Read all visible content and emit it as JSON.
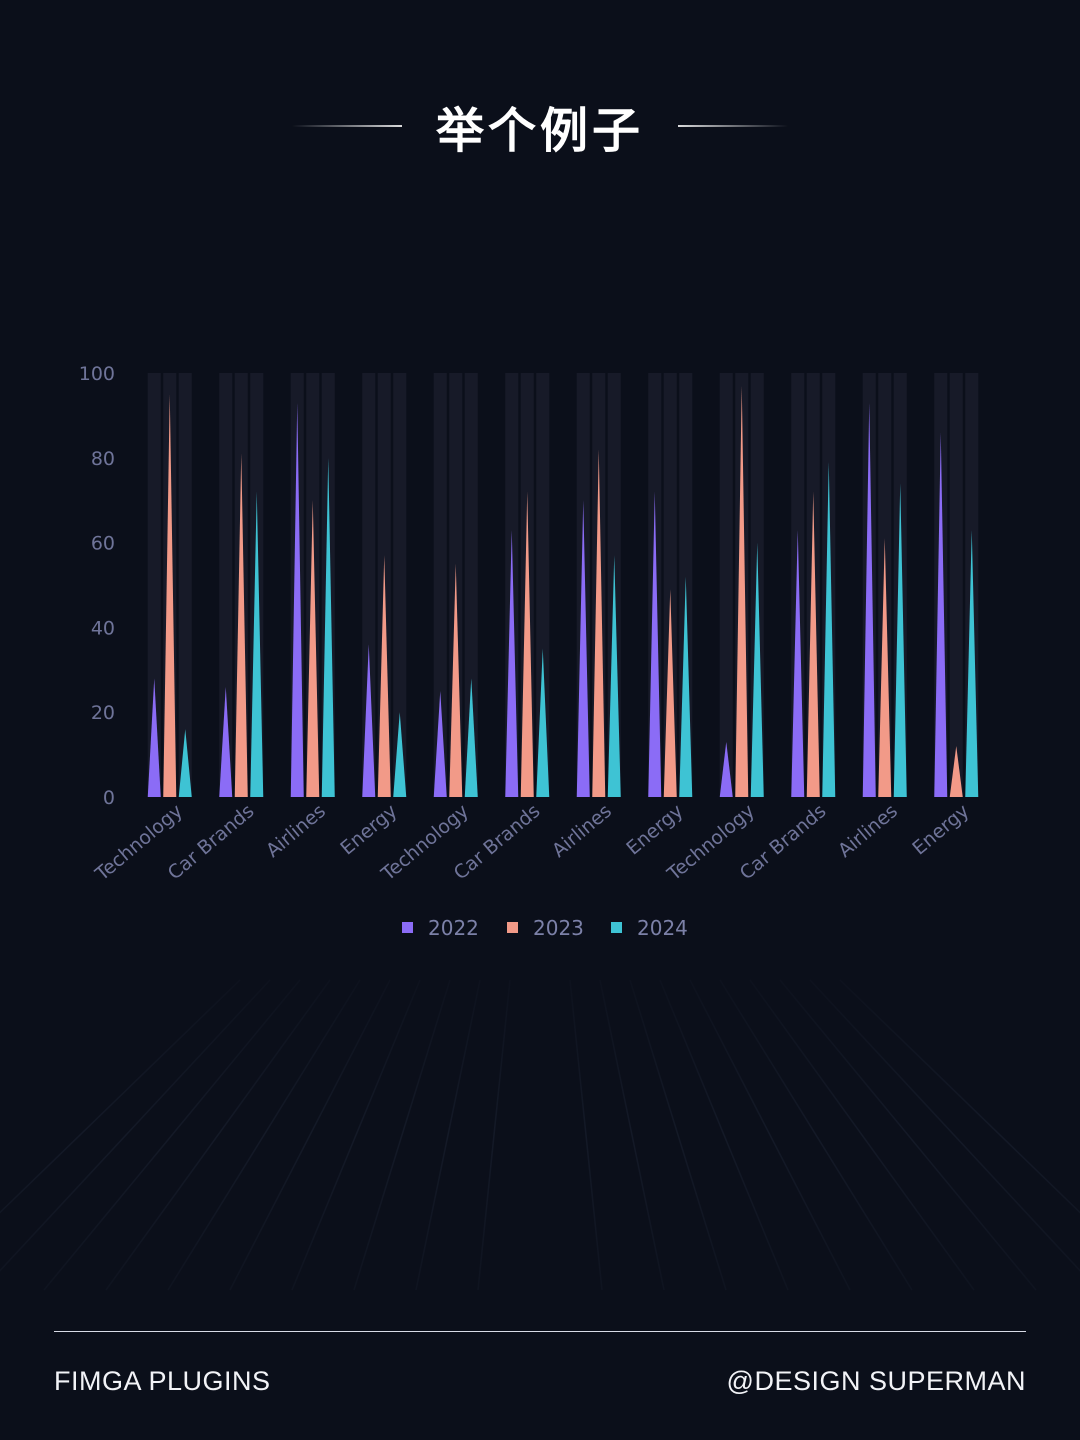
{
  "title": "举个例子",
  "footer": {
    "left": "FIMGA PLUGINS",
    "right": "@DESIGN SUPERMAN"
  },
  "chart_data": {
    "type": "bar",
    "title": "",
    "xlabel": "",
    "ylabel": "",
    "ylim": [
      0,
      100
    ],
    "yticks": [
      "0",
      "20",
      "40",
      "60",
      "80",
      "100"
    ],
    "categories": [
      "Technology",
      "Car Brands",
      "Airlines",
      "Energy",
      "Technology",
      "Car Brands",
      "Airlines",
      "Energy",
      "Technology",
      "Car Brands",
      "Airlines",
      "Energy"
    ],
    "series": [
      {
        "name": "2022",
        "color": "#8b6cf6",
        "values": [
          28,
          26,
          93,
          36,
          25,
          63,
          70,
          72,
          13,
          63,
          93,
          86
        ]
      },
      {
        "name": "2023",
        "color": "#f29a88",
        "values": [
          95,
          81,
          70,
          57,
          55,
          72,
          82,
          49,
          97,
          72,
          61,
          12
        ]
      },
      {
        "name": "2024",
        "color": "#3ec3d4",
        "values": [
          16,
          72,
          80,
          20,
          28,
          35,
          57,
          52,
          60,
          79,
          74,
          63
        ]
      }
    ],
    "legend_position": "bottom",
    "grid": false,
    "mark_style": "spike"
  }
}
